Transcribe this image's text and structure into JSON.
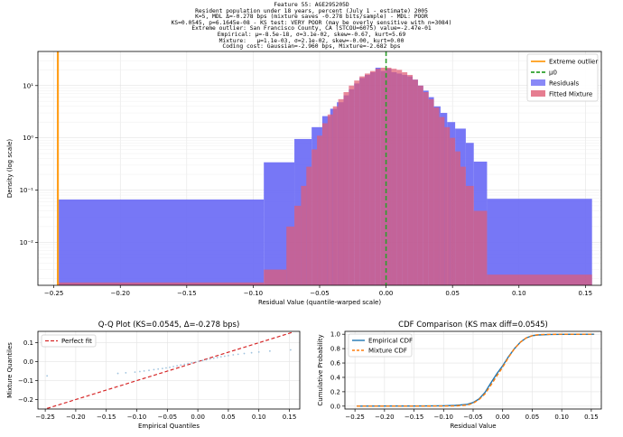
{
  "header_lines": [
    "Feature 55: AGE295205D",
    "Resident population under 18 years, percent (July 1 - estimate) 2005",
    "K=5, MDL Δ=-0.278 bps (mixture saves -0.278 bits/sample) - MDL: POOR",
    "KS=0.0545, p=6.1645e-08 - KS test: VERY POOR (may be overly sensitive with n=3084)",
    "Extreme outlier: San Francisco County, CA (STCOU=6075) value=-2.47e-01",
    "Empirical: μ=-8.5e-18, σ=3.1e-02, skew=-0.67, kurt=5.69",
    "Mixture:   μ=1.1e-03, σ=2.1e-02, skew=-0.00, kurt=0.00",
    "Coding cost: Gaussian=-2.960 bps, Mixture=-2.682 bps"
  ],
  "colors": {
    "residuals": "#6b6bf5",
    "mixture": "#e05c74",
    "overlap": "#b3287a",
    "outlier": "#ff9f1c",
    "mu0": "#2ca02c",
    "empirical_cdf": "#1f77b4",
    "mixture_cdf": "#ff7f0e",
    "perfect_fit": "#d62728"
  },
  "chart_data": [
    {
      "type": "histogram",
      "xlabel": "Residual Value (quantile-warped scale)",
      "ylabel": "Density (log scale)",
      "log_y": true,
      "xlim": [
        -0.262,
        0.162
      ],
      "ylim": [
        0.0015,
        45
      ],
      "x_ticks": [
        "−0.25",
        "−0.20",
        "−0.15",
        "−0.10",
        "−0.05",
        "0.00",
        "0.05",
        "0.10",
        "0.15"
      ],
      "x_tick_values": [
        -0.25,
        -0.2,
        -0.15,
        -0.1,
        -0.05,
        0.0,
        0.05,
        0.1,
        0.15
      ],
      "y_ticks": [
        "10⁻²",
        "10⁻¹",
        "10⁰",
        "10¹"
      ],
      "y_tick_values": [
        0.01,
        0.1,
        1,
        10
      ],
      "legend": [
        "Extreme outlier",
        "μ0",
        "Residuals",
        "Fitted Mixture"
      ],
      "legend_position": "top-right",
      "grid": true,
      "extreme_outlier": -0.247,
      "mu0": 0.0,
      "residual_bins": [
        {
          "x0": -0.247,
          "x1": -0.092,
          "y": 0.066
        },
        {
          "x0": -0.092,
          "x1": -0.069,
          "y": 0.34
        },
        {
          "x0": -0.069,
          "x1": -0.056,
          "y": 0.95
        },
        {
          "x0": -0.056,
          "x1": -0.048,
          "y": 1.6
        },
        {
          "x0": -0.048,
          "x1": -0.042,
          "y": 2.6
        },
        {
          "x0": -0.042,
          "x1": -0.037,
          "y": 3.6
        },
        {
          "x0": -0.037,
          "x1": -0.032,
          "y": 4.8
        },
        {
          "x0": -0.032,
          "x1": -0.028,
          "y": 6.5
        },
        {
          "x0": -0.028,
          "x1": -0.024,
          "y": 8.5
        },
        {
          "x0": -0.024,
          "x1": -0.02,
          "y": 11
        },
        {
          "x0": -0.02,
          "x1": -0.016,
          "y": 14
        },
        {
          "x0": -0.016,
          "x1": -0.012,
          "y": 16
        },
        {
          "x0": -0.012,
          "x1": -0.008,
          "y": 18
        },
        {
          "x0": -0.008,
          "x1": -0.004,
          "y": 22
        },
        {
          "x0": -0.004,
          "x1": 0.0,
          "y": 19
        },
        {
          "x0": 0.0,
          "x1": 0.004,
          "y": 21
        },
        {
          "x0": 0.004,
          "x1": 0.008,
          "y": 18
        },
        {
          "x0": 0.008,
          "x1": 0.012,
          "y": 17
        },
        {
          "x0": 0.012,
          "x1": 0.016,
          "y": 16
        },
        {
          "x0": 0.016,
          "x1": 0.02,
          "y": 15
        },
        {
          "x0": 0.02,
          "x1": 0.024,
          "y": 13
        },
        {
          "x0": 0.024,
          "x1": 0.028,
          "y": 10
        },
        {
          "x0": 0.028,
          "x1": 0.032,
          "y": 8
        },
        {
          "x0": 0.032,
          "x1": 0.036,
          "y": 6
        },
        {
          "x0": 0.036,
          "x1": 0.041,
          "y": 4
        },
        {
          "x0": 0.041,
          "x1": 0.046,
          "y": 3
        },
        {
          "x0": 0.046,
          "x1": 0.052,
          "y": 2
        },
        {
          "x0": 0.052,
          "x1": 0.06,
          "y": 1.5
        },
        {
          "x0": 0.06,
          "x1": 0.066,
          "y": 0.8
        },
        {
          "x0": 0.066,
          "x1": 0.076,
          "y": 0.35
        },
        {
          "x0": 0.076,
          "x1": 0.155,
          "y": 0.068
        }
      ],
      "mixture_bins": [
        {
          "x0": -0.247,
          "x1": -0.092,
          "y": 0.0017
        },
        {
          "x0": -0.092,
          "x1": -0.075,
          "y": 0.003
        },
        {
          "x0": -0.075,
          "x1": -0.069,
          "y": 0.02
        },
        {
          "x0": -0.069,
          "x1": -0.064,
          "y": 0.05
        },
        {
          "x0": -0.064,
          "x1": -0.06,
          "y": 0.12
        },
        {
          "x0": -0.06,
          "x1": -0.056,
          "y": 0.28
        },
        {
          "x0": -0.056,
          "x1": -0.052,
          "y": 0.6
        },
        {
          "x0": -0.052,
          "x1": -0.048,
          "y": 1.1
        },
        {
          "x0": -0.048,
          "x1": -0.044,
          "y": 1.9
        },
        {
          "x0": -0.044,
          "x1": -0.04,
          "y": 2.8
        },
        {
          "x0": -0.04,
          "x1": -0.036,
          "y": 4
        },
        {
          "x0": -0.036,
          "x1": -0.032,
          "y": 5.5
        },
        {
          "x0": -0.032,
          "x1": -0.028,
          "y": 7.5
        },
        {
          "x0": -0.028,
          "x1": -0.024,
          "y": 10
        },
        {
          "x0": -0.024,
          "x1": -0.02,
          "y": 12.5
        },
        {
          "x0": -0.02,
          "x1": -0.016,
          "y": 15
        },
        {
          "x0": -0.016,
          "x1": -0.012,
          "y": 17
        },
        {
          "x0": -0.012,
          "x1": -0.008,
          "y": 19
        },
        {
          "x0": -0.008,
          "x1": -0.004,
          "y": 21
        },
        {
          "x0": -0.004,
          "x1": 0.0,
          "y": 22
        },
        {
          "x0": 0.0,
          "x1": 0.004,
          "y": 22
        },
        {
          "x0": 0.004,
          "x1": 0.008,
          "y": 21
        },
        {
          "x0": 0.008,
          "x1": 0.012,
          "y": 20
        },
        {
          "x0": 0.012,
          "x1": 0.016,
          "y": 18
        },
        {
          "x0": 0.016,
          "x1": 0.02,
          "y": 16
        },
        {
          "x0": 0.02,
          "x1": 0.024,
          "y": 13
        },
        {
          "x0": 0.024,
          "x1": 0.028,
          "y": 10
        },
        {
          "x0": 0.028,
          "x1": 0.032,
          "y": 7.5
        },
        {
          "x0": 0.032,
          "x1": 0.036,
          "y": 5.5
        },
        {
          "x0": 0.036,
          "x1": 0.04,
          "y": 3.8
        },
        {
          "x0": 0.04,
          "x1": 0.044,
          "y": 2.5
        },
        {
          "x0": 0.044,
          "x1": 0.048,
          "y": 1.6
        },
        {
          "x0": 0.048,
          "x1": 0.052,
          "y": 1.0
        },
        {
          "x0": 0.052,
          "x1": 0.056,
          "y": 0.55
        },
        {
          "x0": 0.056,
          "x1": 0.06,
          "y": 0.28
        },
        {
          "x0": 0.06,
          "x1": 0.066,
          "y": 0.12
        },
        {
          "x0": 0.066,
          "x1": 0.076,
          "y": 0.04
        },
        {
          "x0": 0.076,
          "x1": 0.155,
          "y": 0.0024
        }
      ]
    },
    {
      "type": "scatter",
      "title": "Q-Q Plot (KS=0.0545, Δ=-0.278 bps)",
      "xlabel": "Empirical Quantiles",
      "ylabel": "Mixture Quantiles",
      "xlim": [
        -0.262,
        0.167
      ],
      "ylim": [
        -0.25,
        0.16
      ],
      "x_ticks": [
        "−0.25",
        "−0.20",
        "−0.15",
        "−0.10",
        "−0.05",
        "0.00",
        "0.05",
        "0.10",
        "0.15"
      ],
      "x_tick_values": [
        -0.25,
        -0.2,
        -0.15,
        -0.1,
        -0.05,
        0.0,
        0.05,
        0.1,
        0.15
      ],
      "y_ticks": [
        "−0.2",
        "−0.1",
        "0.0",
        "0.1"
      ],
      "y_tick_values": [
        -0.2,
        -0.1,
        0.0,
        0.1
      ],
      "legend": [
        "Perfect fit"
      ],
      "legend_position": "top-left",
      "grid": true,
      "perfect_fit": {
        "x": [
          -0.247,
          0.155
        ],
        "y": [
          -0.247,
          0.155
        ]
      },
      "points": {
        "x": [
          -0.247,
          -0.131,
          -0.118,
          -0.103,
          -0.095,
          -0.088,
          -0.08,
          -0.072,
          -0.065,
          -0.058,
          -0.052,
          -0.046,
          -0.04,
          -0.034,
          -0.028,
          -0.022,
          -0.016,
          -0.01,
          -0.004,
          0.002,
          0.008,
          0.014,
          0.02,
          0.026,
          0.032,
          0.038,
          0.044,
          0.05,
          0.058,
          0.066,
          0.076,
          0.088,
          0.1,
          0.118,
          0.152
        ],
        "y": [
          -0.075,
          -0.062,
          -0.059,
          -0.055,
          -0.052,
          -0.049,
          -0.046,
          -0.042,
          -0.039,
          -0.036,
          -0.033,
          -0.03,
          -0.026,
          -0.022,
          -0.018,
          -0.014,
          -0.01,
          -0.006,
          -0.002,
          0.002,
          0.006,
          0.01,
          0.014,
          0.018,
          0.022,
          0.026,
          0.029,
          0.032,
          0.036,
          0.039,
          0.043,
          0.047,
          0.051,
          0.056,
          0.062
        ]
      }
    },
    {
      "type": "line",
      "title": "CDF Comparison (KS max diff=0.0545)",
      "xlabel": "Residual Value",
      "ylabel": "Cumulative Probability",
      "xlim": [
        -0.267,
        0.167
      ],
      "ylim": [
        -0.04,
        1.04
      ],
      "x_ticks": [
        "−0.25",
        "−0.20",
        "−0.15",
        "−0.10",
        "−0.05",
        "0.00",
        "0.05",
        "0.10",
        "0.15"
      ],
      "x_tick_values": [
        -0.25,
        -0.2,
        -0.15,
        -0.1,
        -0.05,
        0.0,
        0.05,
        0.1,
        0.15
      ],
      "y_ticks": [
        "0.0",
        "0.2",
        "0.4",
        "0.6",
        "0.8",
        "1.0"
      ],
      "y_tick_values": [
        0.0,
        0.2,
        0.4,
        0.6,
        0.8,
        1.0
      ],
      "legend_position": "top-left",
      "grid": true,
      "series": [
        {
          "name": "Empirical CDF",
          "x": [
            -0.247,
            -0.2,
            -0.15,
            -0.1,
            -0.08,
            -0.06,
            -0.05,
            -0.04,
            -0.03,
            -0.02,
            -0.01,
            0.0,
            0.01,
            0.02,
            0.03,
            0.04,
            0.05,
            0.06,
            0.08,
            0.1,
            0.155
          ],
          "y": [
            0.0,
            0.001,
            0.002,
            0.005,
            0.01,
            0.025,
            0.05,
            0.1,
            0.19,
            0.32,
            0.45,
            0.56,
            0.69,
            0.8,
            0.89,
            0.95,
            0.98,
            0.99,
            0.997,
            0.999,
            1.0
          ]
        },
        {
          "name": "Mixture CDF",
          "x": [
            -0.247,
            -0.2,
            -0.15,
            -0.1,
            -0.08,
            -0.06,
            -0.05,
            -0.04,
            -0.03,
            -0.02,
            -0.01,
            0.0,
            0.01,
            0.02,
            0.03,
            0.04,
            0.05,
            0.06,
            0.08,
            0.1,
            0.155
          ],
          "y": [
            0.0,
            0.0,
            0.0,
            0.001,
            0.003,
            0.015,
            0.04,
            0.09,
            0.17,
            0.29,
            0.42,
            0.54,
            0.68,
            0.8,
            0.89,
            0.95,
            0.98,
            0.993,
            0.999,
            1.0,
            1.0
          ]
        }
      ]
    }
  ]
}
